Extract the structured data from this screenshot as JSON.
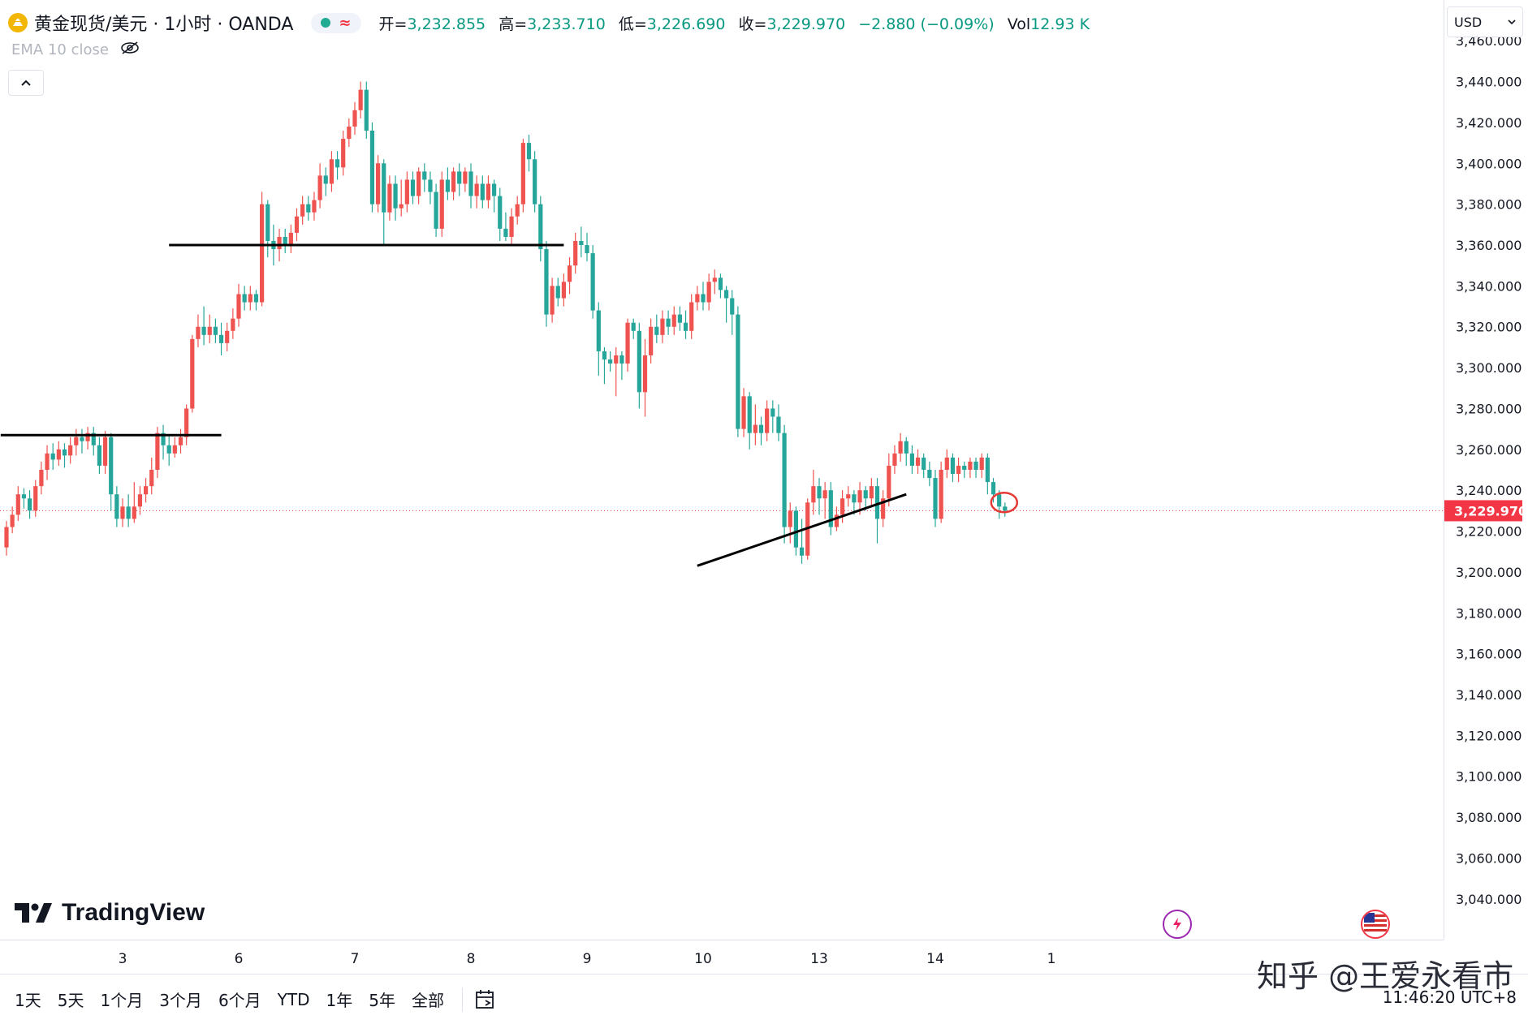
{
  "header": {
    "symbol": "黄金现货/美元 · 1小时 · OANDA",
    "status_wave": "≈",
    "ohlc": [
      {
        "label": "开=",
        "value": "3,232.855"
      },
      {
        "label": "高=",
        "value": "3,233.710"
      },
      {
        "label": "低=",
        "value": "3,226.690"
      },
      {
        "label": "收=",
        "value": "3,229.970"
      },
      {
        "label": "",
        "value": "−2.880 (−0.09%)"
      },
      {
        "label": "Vol",
        "value": "12.93 K"
      }
    ],
    "indicator": "EMA 10 close"
  },
  "currency": "USD",
  "brand": "TradingView",
  "range_buttons": [
    "1天",
    "5天",
    "1个月",
    "3个月",
    "6个月",
    "YTD",
    "1年",
    "5年",
    "全部"
  ],
  "clock": "11:46:20 UTC+8",
  "watermark": "知乎 @王爱永看市",
  "colors": {
    "up": "#ef5350",
    "down": "#26a69a",
    "price_label": "#f23645"
  },
  "chart_data": {
    "type": "candlestick",
    "timeframe": "1小时",
    "y_ticks": [
      "3,460.000",
      "3,440.000",
      "3,420.000",
      "3,400.000",
      "3,380.000",
      "3,360.000",
      "3,340.000",
      "3,320.000",
      "3,300.000",
      "3,280.000",
      "3,260.000",
      "3,240.000",
      "3,220.000",
      "3,200.000",
      "3,180.000",
      "3,160.000",
      "3,140.000",
      "3,120.000",
      "3,100.000",
      "3,080.000",
      "3,060.000",
      "3,040.000"
    ],
    "ylim": [
      3028,
      3472
    ],
    "x_ticks": [
      {
        "label": "3",
        "bar": 20
      },
      {
        "label": "6",
        "bar": 40
      },
      {
        "label": "7",
        "bar": 60
      },
      {
        "label": "8",
        "bar": 80
      },
      {
        "label": "9",
        "bar": 100
      },
      {
        "label": "10",
        "bar": 120
      },
      {
        "label": "13",
        "bar": 140
      },
      {
        "label": "14",
        "bar": 160
      },
      {
        "label": "1",
        "bar": 180
      }
    ],
    "last_price": 3229.97,
    "last_price_label": "3,229.970",
    "candles": [
      [
        3212,
        3222,
        3208,
        3225
      ],
      [
        3222,
        3228,
        3219,
        3232
      ],
      [
        3228,
        3238,
        3225,
        3242
      ],
      [
        3238,
        3236,
        3231,
        3241
      ],
      [
        3236,
        3230,
        3226,
        3240
      ],
      [
        3230,
        3242,
        3227,
        3245
      ],
      [
        3242,
        3250,
        3238,
        3254
      ],
      [
        3250,
        3258,
        3245,
        3262
      ],
      [
        3258,
        3255,
        3250,
        3263
      ],
      [
        3255,
        3260,
        3252,
        3264
      ],
      [
        3260,
        3257,
        3251,
        3263
      ],
      [
        3257,
        3262,
        3253,
        3266
      ],
      [
        3262,
        3266,
        3257,
        3270
      ],
      [
        3266,
        3264,
        3258,
        3270
      ],
      [
        3264,
        3268,
        3260,
        3271
      ],
      [
        3268,
        3262,
        3257,
        3271
      ],
      [
        3262,
        3252,
        3248,
        3266
      ],
      [
        3252,
        3266,
        3248,
        3269
      ],
      [
        3266,
        3238,
        3230,
        3268
      ],
      [
        3238,
        3226,
        3222,
        3242
      ],
      [
        3226,
        3232,
        3222,
        3236
      ],
      [
        3232,
        3226,
        3222,
        3238
      ],
      [
        3226,
        3232,
        3224,
        3244
      ],
      [
        3232,
        3238,
        3228,
        3242
      ],
      [
        3238,
        3242,
        3234,
        3246
      ],
      [
        3242,
        3250,
        3238,
        3256
      ],
      [
        3250,
        3268,
        3246,
        3271
      ],
      [
        3268,
        3262,
        3255,
        3272
      ],
      [
        3262,
        3258,
        3252,
        3267
      ],
      [
        3258,
        3262,
        3256,
        3266
      ],
      [
        3262,
        3266,
        3258,
        3270
      ],
      [
        3266,
        3280,
        3262,
        3282
      ],
      [
        3280,
        3314,
        3278,
        3316
      ],
      [
        3314,
        3320,
        3310,
        3326
      ],
      [
        3320,
        3316,
        3311,
        3330
      ],
      [
        3316,
        3320,
        3312,
        3326
      ],
      [
        3320,
        3316,
        3312,
        3324
      ],
      [
        3316,
        3312,
        3306,
        3322
      ],
      [
        3312,
        3318,
        3308,
        3322
      ],
      [
        3318,
        3324,
        3314,
        3329
      ],
      [
        3324,
        3336,
        3320,
        3341
      ],
      [
        3336,
        3332,
        3328,
        3340
      ],
      [
        3332,
        3336,
        3328,
        3340
      ],
      [
        3336,
        3332,
        3328,
        3338
      ],
      [
        3332,
        3380,
        3330,
        3386
      ],
      [
        3380,
        3362,
        3354,
        3382
      ],
      [
        3362,
        3358,
        3350,
        3370
      ],
      [
        3358,
        3364,
        3352,
        3368
      ],
      [
        3364,
        3360,
        3356,
        3368
      ],
      [
        3360,
        3366,
        3356,
        3370
      ],
      [
        3366,
        3374,
        3362,
        3378
      ],
      [
        3374,
        3380,
        3370,
        3384
      ],
      [
        3380,
        3376,
        3372,
        3384
      ],
      [
        3376,
        3382,
        3372,
        3386
      ],
      [
        3382,
        3394,
        3378,
        3400
      ],
      [
        3394,
        3390,
        3384,
        3398
      ],
      [
        3390,
        3402,
        3386,
        3406
      ],
      [
        3402,
        3398,
        3392,
        3406
      ],
      [
        3398,
        3412,
        3394,
        3416
      ],
      [
        3412,
        3418,
        3408,
        3422
      ],
      [
        3418,
        3426,
        3414,
        3430
      ],
      [
        3426,
        3436,
        3422,
        3440
      ],
      [
        3436,
        3416,
        3412,
        3440
      ],
      [
        3416,
        3380,
        3376,
        3420
      ],
      [
        3380,
        3400,
        3376,
        3404
      ],
      [
        3400,
        3376,
        3360,
        3402
      ],
      [
        3376,
        3390,
        3372,
        3394
      ],
      [
        3390,
        3378,
        3372,
        3394
      ],
      [
        3378,
        3380,
        3374,
        3392
      ],
      [
        3380,
        3392,
        3376,
        3396
      ],
      [
        3392,
        3384,
        3380,
        3396
      ],
      [
        3384,
        3396,
        3380,
        3398
      ],
      [
        3396,
        3392,
        3386,
        3400
      ],
      [
        3392,
        3386,
        3380,
        3396
      ],
      [
        3386,
        3368,
        3364,
        3390
      ],
      [
        3368,
        3392,
        3364,
        3396
      ],
      [
        3392,
        3386,
        3382,
        3398
      ],
      [
        3386,
        3396,
        3382,
        3398
      ],
      [
        3396,
        3390,
        3384,
        3400
      ],
      [
        3390,
        3396,
        3386,
        3398
      ],
      [
        3396,
        3384,
        3378,
        3400
      ],
      [
        3384,
        3390,
        3378,
        3394
      ],
      [
        3390,
        3382,
        3378,
        3394
      ],
      [
        3382,
        3390,
        3378,
        3394
      ],
      [
        3390,
        3384,
        3376,
        3392
      ],
      [
        3384,
        3368,
        3362,
        3388
      ],
      [
        3368,
        3364,
        3362,
        3376
      ],
      [
        3364,
        3374,
        3360,
        3378
      ],
      [
        3374,
        3380,
        3370,
        3384
      ],
      [
        3380,
        3410,
        3376,
        3412
      ],
      [
        3410,
        3402,
        3396,
        3414
      ],
      [
        3402,
        3380,
        3376,
        3406
      ],
      [
        3380,
        3358,
        3352,
        3384
      ],
      [
        3358,
        3326,
        3320,
        3362
      ],
      [
        3326,
        3340,
        3322,
        3344
      ],
      [
        3340,
        3334,
        3330,
        3344
      ],
      [
        3334,
        3342,
        3330,
        3346
      ],
      [
        3342,
        3350,
        3336,
        3354
      ],
      [
        3350,
        3362,
        3346,
        3366
      ],
      [
        3362,
        3360,
        3354,
        3369
      ],
      [
        3360,
        3356,
        3352,
        3366
      ],
      [
        3356,
        3328,
        3324,
        3360
      ],
      [
        3328,
        3308,
        3296,
        3332
      ],
      [
        3308,
        3304,
        3292,
        3310
      ],
      [
        3304,
        3302,
        3298,
        3308
      ],
      [
        3302,
        3306,
        3286,
        3310
      ],
      [
        3306,
        3302,
        3294,
        3308
      ],
      [
        3302,
        3322,
        3298,
        3324
      ],
      [
        3322,
        3318,
        3314,
        3324
      ],
      [
        3318,
        3288,
        3280,
        3322
      ],
      [
        3288,
        3306,
        3276,
        3314
      ],
      [
        3306,
        3320,
        3302,
        3324
      ],
      [
        3320,
        3316,
        3312,
        3326
      ],
      [
        3316,
        3324,
        3312,
        3328
      ],
      [
        3324,
        3320,
        3316,
        3328
      ],
      [
        3320,
        3326,
        3316,
        3330
      ],
      [
        3326,
        3322,
        3318,
        3330
      ],
      [
        3322,
        3318,
        3314,
        3328
      ],
      [
        3318,
        3332,
        3314,
        3336
      ],
      [
        3332,
        3336,
        3328,
        3340
      ],
      [
        3336,
        3332,
        3328,
        3342
      ],
      [
        3332,
        3342,
        3328,
        3346
      ],
      [
        3342,
        3344,
        3336,
        3348
      ],
      [
        3344,
        3338,
        3334,
        3346
      ],
      [
        3338,
        3334,
        3322,
        3340
      ],
      [
        3334,
        3326,
        3316,
        3338
      ],
      [
        3326,
        3270,
        3266,
        3330
      ],
      [
        3270,
        3286,
        3266,
        3290
      ],
      [
        3286,
        3268,
        3260,
        3288
      ],
      [
        3268,
        3272,
        3262,
        3282
      ],
      [
        3272,
        3268,
        3262,
        3276
      ],
      [
        3268,
        3280,
        3264,
        3284
      ],
      [
        3280,
        3276,
        3268,
        3284
      ],
      [
        3276,
        3268,
        3264,
        3282
      ],
      [
        3268,
        3222,
        3214,
        3272
      ],
      [
        3222,
        3230,
        3214,
        3234
      ],
      [
        3230,
        3212,
        3208,
        3232
      ],
      [
        3212,
        3208,
        3204,
        3226
      ],
      [
        3208,
        3234,
        3206,
        3236
      ],
      [
        3234,
        3242,
        3228,
        3250
      ],
      [
        3242,
        3236,
        3228,
        3246
      ],
      [
        3236,
        3240,
        3226,
        3244
      ],
      [
        3240,
        3222,
        3218,
        3244
      ],
      [
        3222,
        3228,
        3220,
        3232
      ],
      [
        3228,
        3236,
        3224,
        3240
      ],
      [
        3236,
        3238,
        3232,
        3242
      ],
      [
        3238,
        3234,
        3228,
        3240
      ],
      [
        3234,
        3240,
        3228,
        3244
      ],
      [
        3240,
        3236,
        3230,
        3242
      ],
      [
        3236,
        3242,
        3232,
        3246
      ],
      [
        3242,
        3226,
        3214,
        3246
      ],
      [
        3226,
        3236,
        3222,
        3240
      ],
      [
        3236,
        3252,
        3232,
        3258
      ],
      [
        3252,
        3258,
        3248,
        3262
      ],
      [
        3258,
        3264,
        3254,
        3268
      ],
      [
        3264,
        3258,
        3252,
        3266
      ],
      [
        3258,
        3252,
        3248,
        3262
      ],
      [
        3252,
        3256,
        3248,
        3260
      ],
      [
        3256,
        3250,
        3246,
        3258
      ],
      [
        3250,
        3246,
        3242,
        3254
      ],
      [
        3246,
        3226,
        3222,
        3250
      ],
      [
        3226,
        3250,
        3224,
        3254
      ],
      [
        3250,
        3256,
        3246,
        3260
      ],
      [
        3256,
        3248,
        3244,
        3258
      ],
      [
        3248,
        3252,
        3244,
        3256
      ],
      [
        3252,
        3250,
        3246,
        3254
      ],
      [
        3250,
        3254,
        3246,
        3256
      ],
      [
        3254,
        3250,
        3246,
        3256
      ],
      [
        3250,
        3256,
        3246,
        3258
      ],
      [
        3256,
        3244,
        3238,
        3258
      ],
      [
        3244,
        3238,
        3234,
        3246
      ],
      [
        3238,
        3232,
        3226,
        3240
      ],
      [
        3232,
        3230,
        3227,
        3234
      ]
    ],
    "drawings": [
      {
        "type": "horizontal",
        "y": 3267,
        "bar_from": -1,
        "bar_to": 37
      },
      {
        "type": "horizontal",
        "y": 3360,
        "bar_from": 28,
        "bar_to": 96
      },
      {
        "type": "trend",
        "bar_from": 119,
        "y_from": 3203,
        "bar_to": 155,
        "y_to": 3238
      }
    ]
  }
}
